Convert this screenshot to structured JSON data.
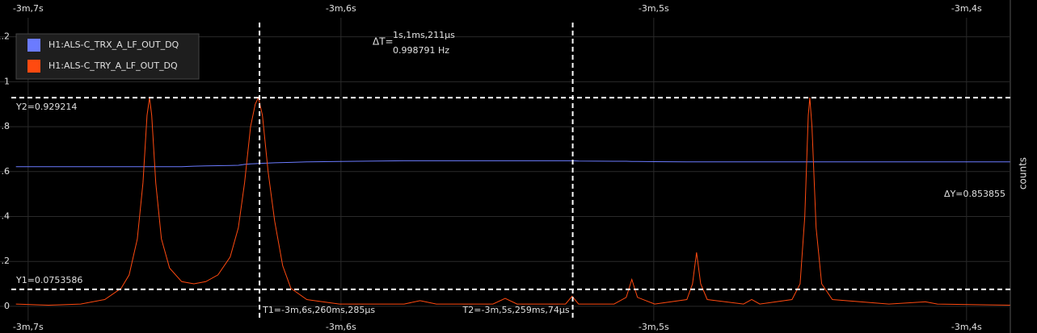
{
  "chart_data": {
    "type": "line",
    "x": [
      -187.039,
      -186.935,
      -186.832,
      -186.755,
      -186.703,
      -186.677,
      -186.651,
      -186.633,
      -186.62,
      -186.612,
      -186.605,
      -186.592,
      -186.574,
      -186.548,
      -186.509,
      -186.47,
      -186.432,
      -186.393,
      -186.354,
      -186.328,
      -186.308,
      -186.289,
      -186.274,
      -186.264,
      -186.251,
      -186.233,
      -186.212,
      -186.186,
      -186.16,
      -186.109,
      -186.005,
      -185.798,
      -185.747,
      -185.695,
      -185.514,
      -185.475,
      -185.437,
      -185.282,
      -185.261,
      -185.24,
      -185.127,
      -185.088,
      -185.07,
      -185.052,
      -184.997,
      -184.894,
      -184.876,
      -184.863,
      -184.85,
      -184.829,
      -184.713,
      -184.687,
      -184.661,
      -184.558,
      -184.532,
      -184.517,
      -184.506,
      -184.501,
      -184.494,
      -184.481,
      -184.463,
      -184.429,
      -184.248,
      -184.132,
      -184.093,
      -183.861
    ],
    "series": [
      {
        "name": "H1:ALS-C_TRX_A_LF_OUT_DQ",
        "color": "#6b7bff",
        "values": [
          0.622,
          0.622,
          0.622,
          0.622,
          0.622,
          0.622,
          0.622,
          0.622,
          0.622,
          0.622,
          0.622,
          0.622,
          0.622,
          0.622,
          0.622,
          0.624,
          0.625,
          0.626,
          0.627,
          0.628,
          0.632,
          0.634,
          0.635,
          0.636,
          0.637,
          0.638,
          0.639,
          0.64,
          0.641,
          0.643,
          0.645,
          0.648,
          0.648,
          0.648,
          0.648,
          0.648,
          0.648,
          0.648,
          0.648,
          0.647,
          0.646,
          0.646,
          0.645,
          0.645,
          0.644,
          0.643,
          0.643,
          0.643,
          0.643,
          0.643,
          0.643,
          0.643,
          0.643,
          0.643,
          0.643,
          0.643,
          0.643,
          0.643,
          0.643,
          0.643,
          0.643,
          0.643,
          0.643,
          0.643,
          0.643,
          0.643
        ]
      },
      {
        "name": "H1:ALS-C_TRY_A_LF_OUT_DQ",
        "color": "#ff4a10",
        "values": [
          0.01,
          0.005,
          0.01,
          0.03,
          0.08,
          0.14,
          0.3,
          0.55,
          0.85,
          0.93,
          0.85,
          0.55,
          0.3,
          0.17,
          0.11,
          0.1,
          0.11,
          0.14,
          0.22,
          0.35,
          0.55,
          0.8,
          0.9,
          0.93,
          0.85,
          0.6,
          0.38,
          0.18,
          0.08,
          0.03,
          0.01,
          0.01,
          0.025,
          0.01,
          0.01,
          0.035,
          0.01,
          0.01,
          0.045,
          0.01,
          0.01,
          0.04,
          0.12,
          0.04,
          0.01,
          0.03,
          0.1,
          0.24,
          0.1,
          0.03,
          0.01,
          0.03,
          0.01,
          0.03,
          0.1,
          0.4,
          0.85,
          0.93,
          0.8,
          0.35,
          0.1,
          0.03,
          0.01,
          0.02,
          0.01,
          0.005
        ]
      }
    ],
    "xlim": [
      -187.09,
      -183.86
    ],
    "xticks": [
      {
        "value": -187,
        "label": "-3m,7s"
      },
      {
        "value": -186,
        "label": "-3m,6s"
      },
      {
        "value": -185,
        "label": "-3m,5s"
      },
      {
        "value": -184,
        "label": "-3m,4s"
      }
    ],
    "ylim": [
      -0.065,
      1.285
    ],
    "yticks": [
      0,
      {
        "value": 0.2,
        "label": ".2"
      },
      {
        "value": 0.4,
        "label": ".4"
      },
      {
        "value": 0.6,
        "label": ".6"
      },
      {
        "value": 0.8,
        "label": ".8"
      },
      1,
      1.2
    ],
    "ylabel": "counts",
    "grid": true,
    "legend": "top-left",
    "cursors": {
      "t1": {
        "value": -186.260285,
        "label": "T1=-3m,6s,260ms,285µs"
      },
      "t2": {
        "value": -185.259074,
        "label": "T2=-3m,5s,259ms,74µs"
      },
      "y1": {
        "value": 0.0753586,
        "label": "Y1=0.0753586"
      },
      "y2": {
        "value": 0.929214,
        "label": "Y2=0.929214"
      }
    },
    "delta_t_prefix": "ΔT=",
    "delta_t": "1s,1ms,211µs",
    "delta_f": "0.998791 Hz",
    "delta_y": "ΔY=0.853855"
  }
}
